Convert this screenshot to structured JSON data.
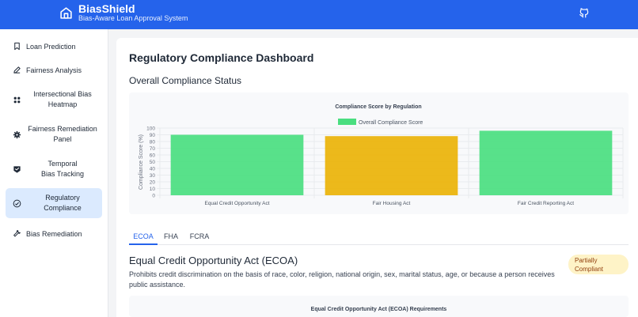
{
  "app": {
    "name": "BiasShield",
    "tagline": "Bias-Aware Loan Approval System",
    "logo_icon": "home-icon",
    "github_icon": "github-icon"
  },
  "sidebar": {
    "items": [
      {
        "label": "Loan Prediction",
        "icon": "bookmark-icon"
      },
      {
        "label": "Fairness Analysis",
        "icon": "pencil-icon"
      },
      {
        "label": "Intersectional Bias Heatmap",
        "icon": "grid-icon"
      },
      {
        "label": "Fairness Remediation Panel",
        "icon": "gear-icon"
      },
      {
        "label": "Temporal Bias Tracking",
        "icon": "shield-check-icon"
      },
      {
        "label": "Regulatory Compliance",
        "icon": "check-circle-icon",
        "active": true
      },
      {
        "label": "Bias Remediation",
        "icon": "wrench-icon"
      }
    ]
  },
  "main": {
    "title": "Regulatory Compliance Dashboard",
    "overall_heading": "Overall Compliance Status",
    "tabs": [
      "ECOA",
      "FHA",
      "FCRA"
    ],
    "active_tab": "ECOA",
    "section": {
      "title": "Equal Credit Opportunity Act (ECOA)",
      "description": "Prohibits credit discrimination on the basis of race, color, religion, national origin, sex, marital status, age, or because a person receives public assistance.",
      "status_line1": "Partially",
      "status_line2": "Compliant"
    },
    "requirements_title": "Equal Credit Opportunity Act (ECOA) Requirements"
  },
  "colors": {
    "primary": "#2563eb",
    "green": "#4ade80",
    "yellow": "#eab308",
    "badge_bg": "#fef3c7"
  },
  "chart_data": {
    "type": "bar",
    "title": "Compliance Score by Regulation",
    "ylabel": "Compliance Score (%)",
    "xlabel": "",
    "ylim": [
      0,
      100
    ],
    "yticks": [
      0,
      10,
      20,
      30,
      40,
      50,
      60,
      70,
      80,
      90,
      100
    ],
    "categories": [
      "Equal Credit Opportunity Act",
      "Fair Housing Act",
      "Fair Credit Reporting Act"
    ],
    "series": [
      {
        "name": "Overall Compliance Score",
        "values": [
          90,
          88,
          96
        ]
      }
    ],
    "bar_colors": [
      "#4ade80",
      "#eab308",
      "#4ade80"
    ],
    "legend_color": "#4ade80",
    "legend": "top",
    "grid": true
  }
}
